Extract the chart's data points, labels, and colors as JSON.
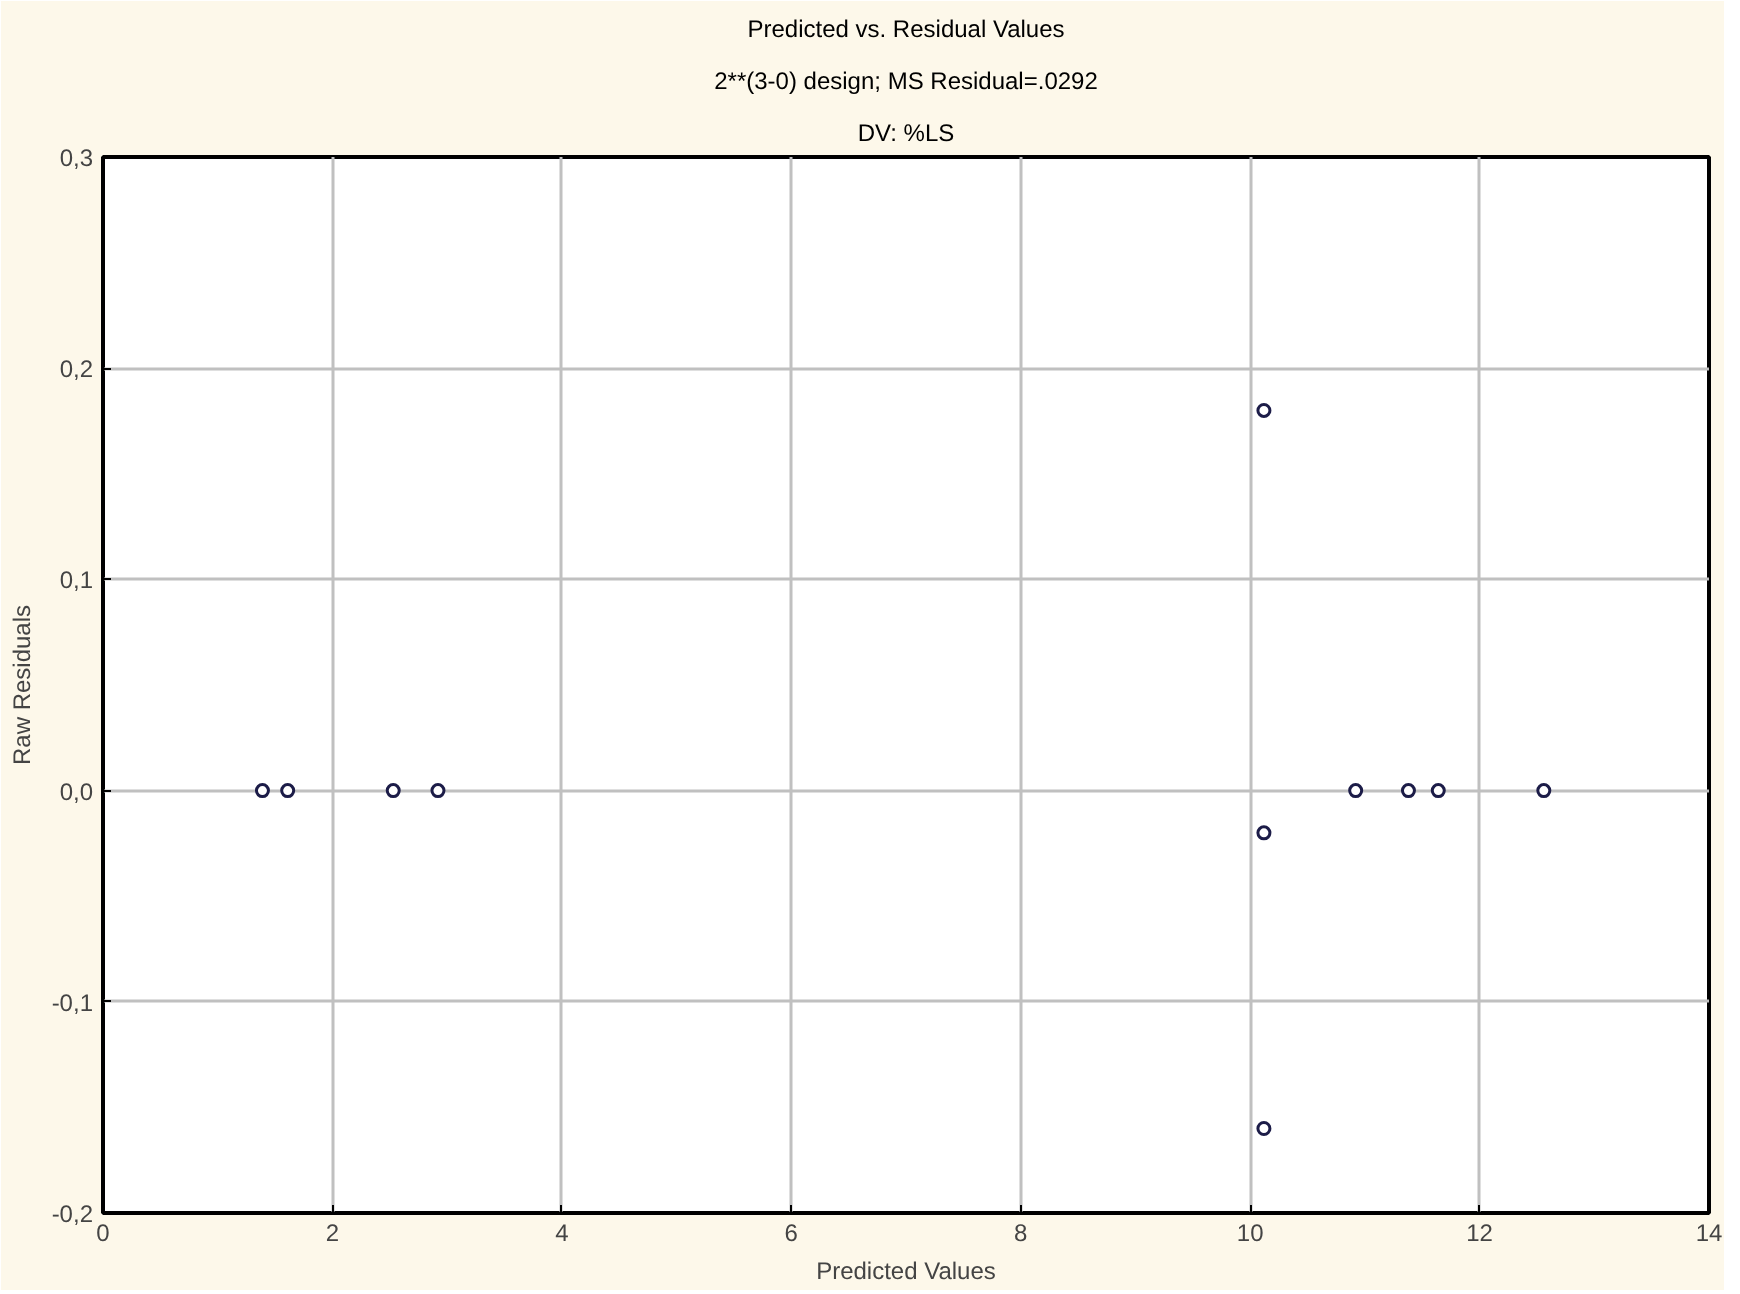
{
  "chart_data": {
    "type": "scatter",
    "title": "Predicted vs. Residual Values",
    "subtitle": "2**(3-0) design; MS Residual=.0292",
    "annotations": [
      "DV: %LS"
    ],
    "xlabel": "Predicted Values",
    "ylabel": "Raw Residuals",
    "x": [
      1.39,
      1.61,
      2.53,
      2.92,
      10.12,
      10.12,
      10.12,
      10.92,
      11.38,
      11.64,
      12.56
    ],
    "values": [
      0.0,
      0.0,
      0.0,
      0.0,
      0.18,
      -0.02,
      -0.16,
      0.0,
      0.0,
      0.0,
      0.0
    ],
    "color": "#1c1c48",
    "marker": "circle",
    "grid": true,
    "xlim": [
      0,
      14
    ],
    "xticks": [
      0,
      2,
      4,
      6,
      8,
      10,
      12,
      14
    ],
    "ylim": [
      -0.2,
      0.3
    ],
    "yticks": [
      {
        "value": -0.2,
        "label": "-0,2"
      },
      {
        "value": -0.1,
        "label": "-0,1"
      },
      {
        "value": 0.0,
        "label": "0,0"
      },
      {
        "value": 0.1,
        "label": "0,1"
      },
      {
        "value": 0.2,
        "label": "0,2"
      },
      {
        "value": 0.3,
        "label": "0,3"
      }
    ]
  }
}
